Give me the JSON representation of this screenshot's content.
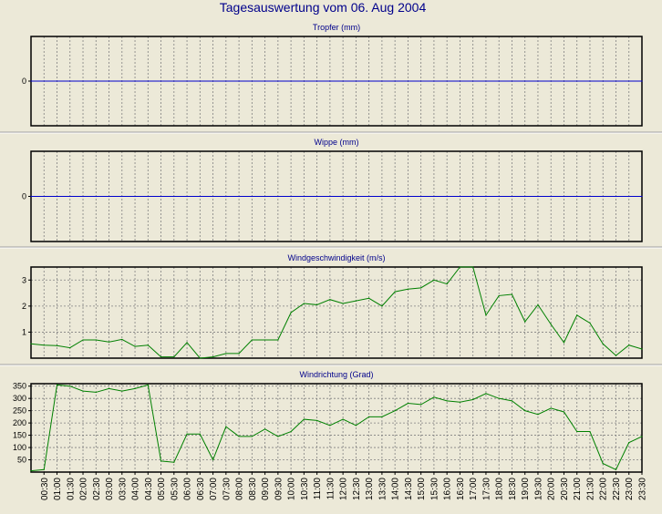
{
  "title": "Tagesauswertung vom 06. Aug 2004",
  "x_labels": [
    "00:30",
    "01:00",
    "01:30",
    "02:00",
    "02:30",
    "03:00",
    "03:30",
    "04:00",
    "04:30",
    "05:00",
    "05:30",
    "06:00",
    "06:30",
    "07:00",
    "07:30",
    "08:00",
    "08:30",
    "09:00",
    "09:30",
    "10:00",
    "10:30",
    "11:00",
    "11:30",
    "12:00",
    "12:30",
    "13:00",
    "13:30",
    "14:00",
    "14:30",
    "15:00",
    "15:30",
    "16:00",
    "16:30",
    "17:00",
    "17:30",
    "18:00",
    "18:30",
    "19:00",
    "19:30",
    "20:00",
    "20:30",
    "21:00",
    "21:30",
    "22:00",
    "22:30",
    "23:00",
    "23:30"
  ],
  "colors": {
    "background": "#ece9d8",
    "title": "#00008b",
    "series_blue": "#0000cc",
    "series_green": "#008000",
    "grid": "#808080"
  },
  "chart_data": [
    {
      "type": "line",
      "title": "Tropfer (mm)",
      "ylim": [
        -1,
        1
      ],
      "yticks": [
        0
      ],
      "x": [
        "00:00",
        "00:30",
        "01:00",
        "01:30",
        "02:00",
        "02:30",
        "03:00",
        "03:30",
        "04:00",
        "04:30",
        "05:00",
        "05:30",
        "06:00",
        "06:30",
        "07:00",
        "07:30",
        "08:00",
        "08:30",
        "09:00",
        "09:30",
        "10:00",
        "10:30",
        "11:00",
        "11:30",
        "12:00",
        "12:30",
        "13:00",
        "13:30",
        "14:00",
        "14:30",
        "15:00",
        "15:30",
        "16:00",
        "16:30",
        "17:00",
        "17:30",
        "18:00",
        "18:30",
        "19:00",
        "19:30",
        "20:00",
        "20:30",
        "21:00",
        "21:30",
        "22:00",
        "22:30",
        "23:00",
        "23:30"
      ],
      "series": [
        {
          "color": "#0000cc",
          "values": [
            0,
            0,
            0,
            0,
            0,
            0,
            0,
            0,
            0,
            0,
            0,
            0,
            0,
            0,
            0,
            0,
            0,
            0,
            0,
            0,
            0,
            0,
            0,
            0,
            0,
            0,
            0,
            0,
            0,
            0,
            0,
            0,
            0,
            0,
            0,
            0,
            0,
            0,
            0,
            0,
            0,
            0,
            0,
            0,
            0,
            0,
            0,
            0
          ]
        }
      ],
      "grid": true
    },
    {
      "type": "line",
      "title": "Wippe (mm)",
      "ylim": [
        -1,
        1
      ],
      "yticks": [
        0
      ],
      "x": [
        "00:00",
        "00:30",
        "01:00",
        "01:30",
        "02:00",
        "02:30",
        "03:00",
        "03:30",
        "04:00",
        "04:30",
        "05:00",
        "05:30",
        "06:00",
        "06:30",
        "07:00",
        "07:30",
        "08:00",
        "08:30",
        "09:00",
        "09:30",
        "10:00",
        "10:30",
        "11:00",
        "11:30",
        "12:00",
        "12:30",
        "13:00",
        "13:30",
        "14:00",
        "14:30",
        "15:00",
        "15:30",
        "16:00",
        "16:30",
        "17:00",
        "17:30",
        "18:00",
        "18:30",
        "19:00",
        "19:30",
        "20:00",
        "20:30",
        "21:00",
        "21:30",
        "22:00",
        "22:30",
        "23:00",
        "23:30"
      ],
      "series": [
        {
          "color": "#0000cc",
          "values": [
            0,
            0,
            0,
            0,
            0,
            0,
            0,
            0,
            0,
            0,
            0,
            0,
            0,
            0,
            0,
            0,
            0,
            0,
            0,
            0,
            0,
            0,
            0,
            0,
            0,
            0,
            0,
            0,
            0,
            0,
            0,
            0,
            0,
            0,
            0,
            0,
            0,
            0,
            0,
            0,
            0,
            0,
            0,
            0,
            0,
            0,
            0,
            0
          ]
        }
      ],
      "grid": true
    },
    {
      "type": "line",
      "title": "Windgeschwindigkeit (m/s)",
      "ylim": [
        0,
        3.5
      ],
      "yticks": [
        1,
        2,
        3
      ],
      "x": [
        "00:00",
        "00:30",
        "01:00",
        "01:30",
        "02:00",
        "02:30",
        "03:00",
        "03:30",
        "04:00",
        "04:30",
        "05:00",
        "05:30",
        "06:00",
        "06:30",
        "07:00",
        "07:30",
        "08:00",
        "08:30",
        "09:00",
        "09:30",
        "10:00",
        "10:30",
        "11:00",
        "11:30",
        "12:00",
        "12:30",
        "13:00",
        "13:30",
        "14:00",
        "14:30",
        "15:00",
        "15:30",
        "16:00",
        "16:30",
        "17:00",
        "17:30",
        "18:00",
        "18:30",
        "19:00",
        "19:30",
        "20:00",
        "20:30",
        "21:00",
        "21:30",
        "22:00",
        "22:30",
        "23:00",
        "23:30"
      ],
      "series": [
        {
          "color": "#008000",
          "values": [
            0.55,
            0.5,
            0.48,
            0.4,
            0.7,
            0.7,
            0.62,
            0.72,
            0.45,
            0.5,
            0.05,
            0.05,
            0.6,
            0.0,
            0.05,
            0.18,
            0.18,
            0.7,
            0.7,
            0.7,
            1.75,
            2.1,
            2.05,
            2.25,
            2.1,
            2.2,
            2.3,
            2.0,
            2.55,
            2.65,
            2.7,
            3.0,
            2.85,
            3.55,
            3.5,
            1.65,
            2.4,
            2.45,
            1.4,
            2.05,
            1.3,
            0.6,
            1.65,
            1.35,
            0.55,
            0.1,
            0.5,
            0.35
          ]
        }
      ],
      "grid": true
    },
    {
      "type": "line",
      "title": "Windrichtung (Grad)",
      "ylim": [
        0,
        360
      ],
      "yticks": [
        50,
        100,
        150,
        200,
        250,
        300,
        350
      ],
      "x": [
        "00:00",
        "00:30",
        "01:00",
        "01:30",
        "02:00",
        "02:30",
        "03:00",
        "03:30",
        "04:00",
        "04:30",
        "05:00",
        "05:30",
        "06:00",
        "06:30",
        "07:00",
        "07:30",
        "08:00",
        "08:30",
        "09:00",
        "09:30",
        "10:00",
        "10:30",
        "11:00",
        "11:30",
        "12:00",
        "12:30",
        "13:00",
        "13:30",
        "14:00",
        "14:30",
        "15:00",
        "15:30",
        "16:00",
        "16:30",
        "17:00",
        "17:30",
        "18:00",
        "18:30",
        "19:00",
        "19:30",
        "20:00",
        "20:30",
        "21:00",
        "21:30",
        "22:00",
        "22:30",
        "23:00",
        "23:30"
      ],
      "series": [
        {
          "color": "#008000",
          "values": [
            5,
            10,
            355,
            350,
            330,
            325,
            340,
            330,
            340,
            355,
            45,
            40,
            155,
            155,
            50,
            185,
            145,
            145,
            175,
            145,
            165,
            215,
            210,
            190,
            215,
            190,
            225,
            225,
            250,
            280,
            275,
            305,
            290,
            285,
            295,
            320,
            300,
            290,
            250,
            235,
            260,
            245,
            165,
            165,
            35,
            10,
            120,
            145
          ]
        }
      ],
      "grid": true
    }
  ]
}
